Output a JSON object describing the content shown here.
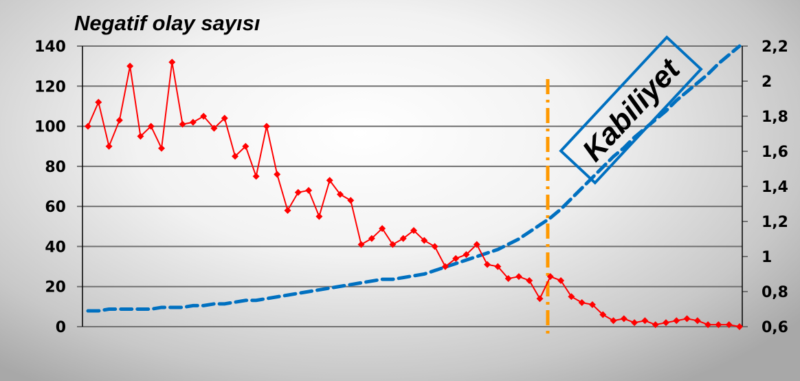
{
  "chart_data": {
    "type": "line",
    "title": "Negatif olay sayısı",
    "xlabel": "",
    "ylabel": "",
    "ylim": [
      0,
      140
    ],
    "y2lim": [
      0.6,
      2.2
    ],
    "yticks": [
      "0",
      "20",
      "40",
      "60",
      "80",
      "100",
      "120",
      "140"
    ],
    "y2ticks": [
      "0,6",
      "0,8",
      "1",
      "1,2",
      "1,4",
      "1,6",
      "1,8",
      "2",
      "2,2"
    ],
    "grid": true,
    "series": [
      {
        "axis": "left",
        "color": "#ff0000",
        "style": "solid-diamond-markers",
        "values": [
          100,
          112,
          90,
          103,
          130,
          95,
          100,
          89,
          132,
          101,
          102,
          105,
          99,
          104,
          85,
          90,
          75,
          100,
          76,
          58,
          67,
          68,
          55,
          73,
          66,
          63,
          41,
          44,
          49,
          41,
          44,
          48,
          43,
          40,
          30,
          34,
          36,
          41,
          31,
          30,
          24,
          25,
          23,
          14,
          25,
          23,
          15,
          12,
          11,
          6,
          3,
          4,
          2,
          3,
          1,
          2,
          3,
          4,
          3,
          1,
          1,
          1,
          0
        ]
      },
      {
        "axis": "right",
        "color": "#0070c0",
        "style": "dashed",
        "values": [
          0.69,
          0.69,
          0.7,
          0.7,
          0.7,
          0.7,
          0.7,
          0.71,
          0.71,
          0.71,
          0.72,
          0.72,
          0.73,
          0.73,
          0.74,
          0.75,
          0.75,
          0.76,
          0.77,
          0.78,
          0.79,
          0.8,
          0.81,
          0.82,
          0.83,
          0.84,
          0.85,
          0.86,
          0.87,
          0.87,
          0.88,
          0.89,
          0.9,
          0.92,
          0.94,
          0.96,
          0.98,
          1.0,
          1.02,
          1.04,
          1.07,
          1.1,
          1.14,
          1.18,
          1.22,
          1.27,
          1.33,
          1.39,
          1.45,
          1.51,
          1.57,
          1.62,
          1.68,
          1.73,
          1.78,
          1.83,
          1.89,
          1.94,
          1.99,
          2.04,
          2.1,
          2.15,
          2.2
        ]
      }
    ],
    "annotations": [
      {
        "type": "vertical-line",
        "at_index": 43.75,
        "color": "#ff9900",
        "style": "dash-dot"
      },
      {
        "type": "label-box",
        "text": "Kabiliyet",
        "color": "#0070c0"
      }
    ]
  }
}
